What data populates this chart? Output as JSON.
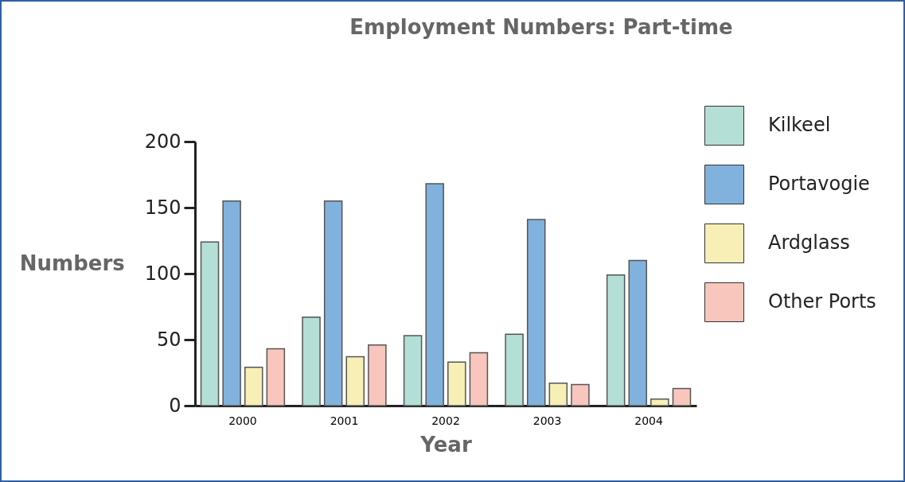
{
  "chart_data": {
    "type": "bar",
    "title": "Employment Numbers: Part-time",
    "xlabel": "Year",
    "ylabel": "Numbers",
    "categories": [
      "2000",
      "2001",
      "2002",
      "2003",
      "2004"
    ],
    "series": [
      {
        "name": "Kilkeel",
        "color": "#b3dfd6",
        "values": [
          124,
          67,
          53,
          54,
          99
        ]
      },
      {
        "name": "Portavogie",
        "color": "#80b2dd",
        "values": [
          155,
          155,
          168,
          141,
          110
        ]
      },
      {
        "name": "Ardglass",
        "color": "#f7efb5",
        "values": [
          29,
          37,
          33,
          17,
          5
        ]
      },
      {
        "name": "Other Ports",
        "color": "#f8c6bc",
        "values": [
          43,
          46,
          40,
          16,
          13
        ]
      }
    ],
    "ylim": [
      0,
      200
    ],
    "yticks": [
      0,
      50,
      100,
      150,
      200
    ],
    "grid": false,
    "legend": "top right"
  }
}
